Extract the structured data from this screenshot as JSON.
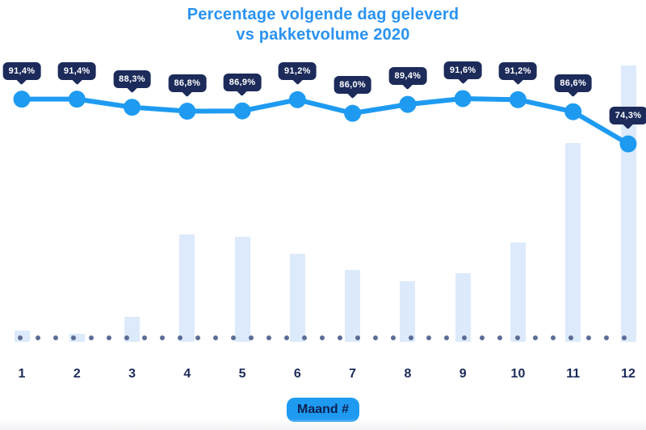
{
  "title": {
    "line1": "Percentage volgende dag geleverd",
    "line2": "vs pakketvolume 2020"
  },
  "colors": {
    "title_blue": "#2a93f0",
    "accent_blue": "#1e9bf1",
    "navy": "#1c2b5a",
    "bar_fill": "#dceafb",
    "grid_dot": "#5b6d96",
    "tooltip_text": "#ffffff",
    "badge_text": "#0e2152"
  },
  "x_axis": {
    "badge_label": "Maand #",
    "tick_labels": [
      "1",
      "2",
      "3",
      "4",
      "5",
      "6",
      "7",
      "8",
      "9",
      "10",
      "11",
      "12"
    ]
  },
  "chart_data": {
    "type": "line",
    "combo": [
      "line",
      "bar"
    ],
    "title": "Percentage volgende dag geleverd vs pakketvolume 2020",
    "xlabel": "Maand #",
    "categories": [
      1,
      2,
      3,
      4,
      5,
      6,
      7,
      8,
      9,
      10,
      11,
      12
    ],
    "grid": "dotted baseline only",
    "legend": "none",
    "series": [
      {
        "name": "Percentage volgende dag geleverd",
        "type": "line",
        "unit": "%",
        "values": [
          91.4,
          91.4,
          88.3,
          86.8,
          86.9,
          91.2,
          86.0,
          89.4,
          91.6,
          91.2,
          86.6,
          74.3
        ],
        "labels": [
          "91,4%",
          "91,4%",
          "88,3%",
          "86,8%",
          "86,9%",
          "91,2%",
          "86,0%",
          "89,4%",
          "91,6%",
          "91,2%",
          "86,6%",
          "74,3%"
        ]
      },
      {
        "name": "Pakketvolume 2020",
        "type": "bar",
        "unit": "relative volume, % of December (estimated from bar heights)",
        "values": [
          4,
          3,
          9,
          39,
          38,
          32,
          26,
          22,
          25,
          36,
          72,
          100
        ]
      }
    ]
  }
}
